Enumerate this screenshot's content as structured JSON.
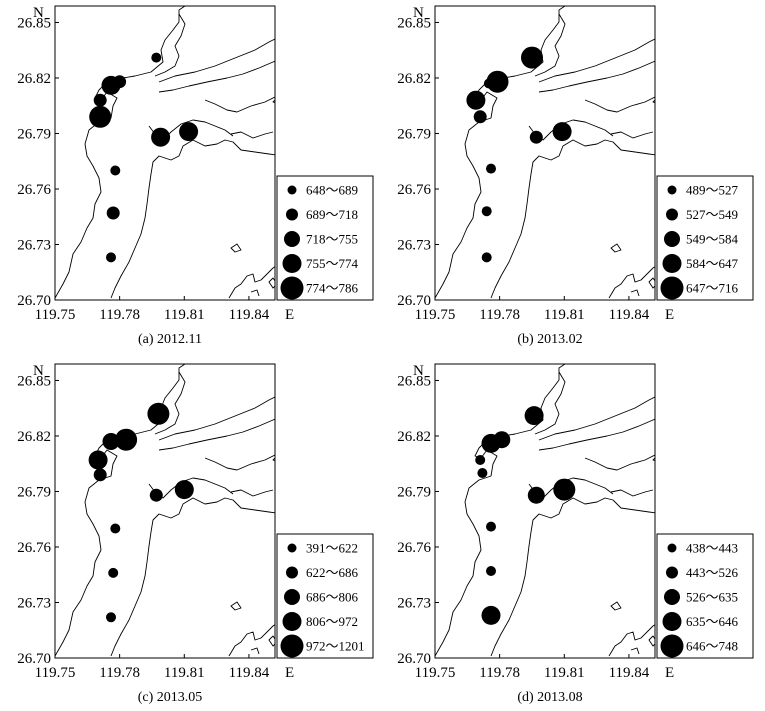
{
  "axes": {
    "north_label": "N",
    "east_label": "E",
    "x_ticks": [
      "119.75",
      "119.78",
      "119.81",
      "119.84"
    ],
    "y_ticks": [
      "26.85",
      "26.82",
      "26.79",
      "26.76",
      "26.73",
      "26.70"
    ]
  },
  "chart_data": [
    {
      "type": "scatter",
      "caption": "(a) 2012.11",
      "legend": [
        "648～689",
        "689～718",
        "718～755",
        "755～774",
        "774～786"
      ],
      "stations": [
        {
          "lon": 119.797,
          "lat": 26.831,
          "cls": 1
        },
        {
          "lon": 119.78,
          "lat": 26.818,
          "cls": 2
        },
        {
          "lon": 119.776,
          "lat": 26.816,
          "cls": 4
        },
        {
          "lon": 119.771,
          "lat": 26.808,
          "cls": 2
        },
        {
          "lon": 119.771,
          "lat": 26.799,
          "cls": 5
        },
        {
          "lon": 119.799,
          "lat": 26.788,
          "cls": 4
        },
        {
          "lon": 119.812,
          "lat": 26.791,
          "cls": 4
        },
        {
          "lon": 119.778,
          "lat": 26.77,
          "cls": 1
        },
        {
          "lon": 119.777,
          "lat": 26.747,
          "cls": 2
        },
        {
          "lon": 119.776,
          "lat": 26.723,
          "cls": 1
        }
      ]
    },
    {
      "type": "scatter",
      "caption": "(b) 2013.02",
      "legend": [
        "489～527",
        "527～549",
        "549～584",
        "584～647",
        "647～716"
      ],
      "stations": [
        {
          "lon": 119.795,
          "lat": 26.831,
          "cls": 5
        },
        {
          "lon": 119.779,
          "lat": 26.818,
          "cls": 5
        },
        {
          "lon": 119.775,
          "lat": 26.817,
          "cls": 1
        },
        {
          "lon": 119.769,
          "lat": 26.808,
          "cls": 4
        },
        {
          "lon": 119.771,
          "lat": 26.799,
          "cls": 2
        },
        {
          "lon": 119.797,
          "lat": 26.788,
          "cls": 2
        },
        {
          "lon": 119.809,
          "lat": 26.791,
          "cls": 4
        },
        {
          "lon": 119.776,
          "lat": 26.771,
          "cls": 1
        },
        {
          "lon": 119.774,
          "lat": 26.748,
          "cls": 1
        },
        {
          "lon": 119.774,
          "lat": 26.723,
          "cls": 1
        }
      ]
    },
    {
      "type": "scatter",
      "caption": "(c) 2013.05",
      "legend": [
        "391～622",
        "622～686",
        "686～806",
        "806～972",
        "972～1201"
      ],
      "stations": [
        {
          "lon": 119.798,
          "lat": 26.832,
          "cls": 5
        },
        {
          "lon": 119.783,
          "lat": 26.818,
          "cls": 5
        },
        {
          "lon": 119.776,
          "lat": 26.817,
          "cls": 3
        },
        {
          "lon": 119.77,
          "lat": 26.807,
          "cls": 4
        },
        {
          "lon": 119.771,
          "lat": 26.799,
          "cls": 2
        },
        {
          "lon": 119.797,
          "lat": 26.788,
          "cls": 2
        },
        {
          "lon": 119.81,
          "lat": 26.791,
          "cls": 4
        },
        {
          "lon": 119.778,
          "lat": 26.77,
          "cls": 1
        },
        {
          "lon": 119.777,
          "lat": 26.746,
          "cls": 1
        },
        {
          "lon": 119.776,
          "lat": 26.722,
          "cls": 1
        }
      ]
    },
    {
      "type": "scatter",
      "caption": "(d) 2013.08",
      "legend": [
        "438～443",
        "443～526",
        "526～635",
        "635～646",
        "646～748"
      ],
      "stations": [
        {
          "lon": 119.796,
          "lat": 26.831,
          "cls": 4
        },
        {
          "lon": 119.781,
          "lat": 26.818,
          "cls": 3
        },
        {
          "lon": 119.776,
          "lat": 26.816,
          "cls": 4
        },
        {
          "lon": 119.771,
          "lat": 26.807,
          "cls": 1
        },
        {
          "lon": 119.772,
          "lat": 26.8,
          "cls": 1
        },
        {
          "lon": 119.797,
          "lat": 26.788,
          "cls": 3
        },
        {
          "lon": 119.81,
          "lat": 26.791,
          "cls": 5
        },
        {
          "lon": 119.776,
          "lat": 26.771,
          "cls": 1
        },
        {
          "lon": 119.776,
          "lat": 26.747,
          "cls": 1
        },
        {
          "lon": 119.776,
          "lat": 26.723,
          "cls": 4
        }
      ]
    }
  ]
}
